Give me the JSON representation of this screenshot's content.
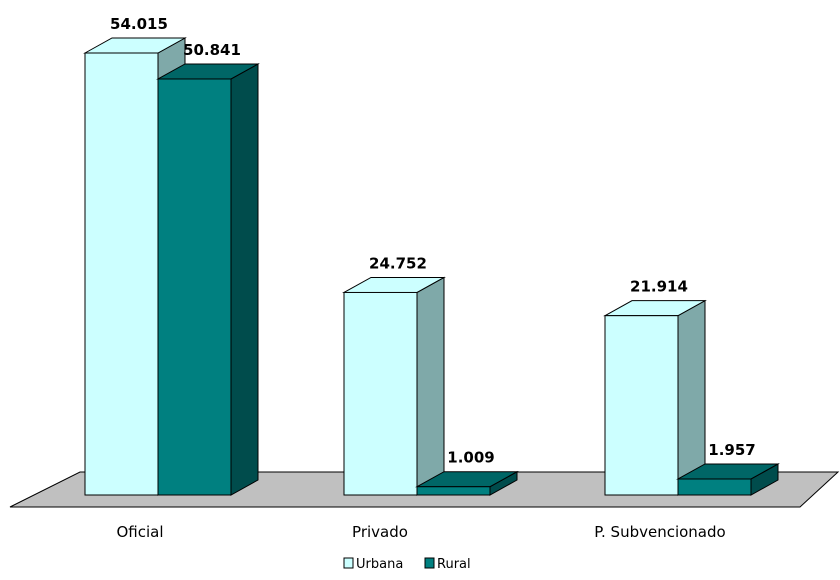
{
  "chart_data": {
    "type": "bar",
    "categories": [
      "Oficial",
      "Privado",
      "P. Subvencionado"
    ],
    "series": [
      {
        "name": "Urbana",
        "values": [
          54015,
          24752,
          21914
        ],
        "labels": [
          "54.015",
          "24.752",
          "21.914"
        ],
        "color": "#CCFFFF"
      },
      {
        "name": "Rural",
        "values": [
          50841,
          1009,
          1957
        ],
        "labels": [
          "50.841",
          "1.009",
          "1.957"
        ],
        "color": "#008080"
      }
    ],
    "ylim": [
      0,
      54015
    ],
    "grid": false,
    "three_d": true,
    "legend_position": "bottom"
  },
  "colors": {
    "floor": "#C0C0C0",
    "urbana_side": "#7FA9A9",
    "rural_side": "#004C4C",
    "rural_top": "#006666"
  }
}
